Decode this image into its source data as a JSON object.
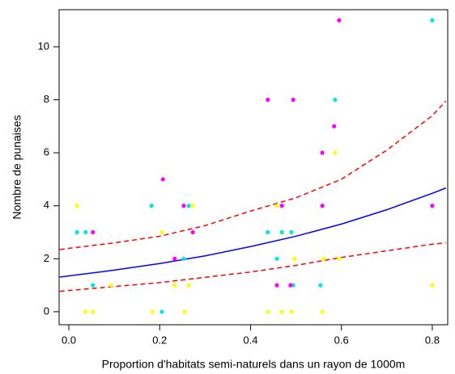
{
  "chart_data": {
    "type": "scatter",
    "x_label": "Proportion d'habitats semi-naturels dans un rayon de 1000m",
    "y_label": "Nombre de punaises",
    "xlim": [
      -0.0214,
      0.834
    ],
    "ylim": [
      -0.49,
      11.4
    ],
    "xticks": [
      {
        "value": 0,
        "label": "0.0"
      },
      0.2,
      0.4,
      0.6,
      0.8
    ],
    "yticks": [
      0,
      2,
      4,
      6,
      8,
      10
    ],
    "series": [
      {
        "style": "points",
        "color": "#00e5e5",
        "x": [
          0.018,
          0.037,
          0.053,
          0.182,
          0.205,
          0.253,
          0.264,
          0.438,
          0.458,
          0.469,
          0.49,
          0.494,
          0.586,
          0.558,
          0.554,
          0.8
        ],
        "values": [
          3,
          3,
          1,
          4,
          0,
          2,
          4,
          3,
          2,
          3,
          3,
          1,
          8,
          4,
          1,
          11
        ]
      },
      {
        "style": "points",
        "color": "#ff00ff",
        "x": [
          0.053,
          0.207,
          0.233,
          0.253,
          0.273,
          0.438,
          0.458,
          0.469,
          0.494,
          0.488,
          0.558,
          0.558,
          0.584,
          0.595,
          0.8
        ],
        "values": [
          3,
          5,
          2,
          4,
          3,
          8,
          1,
          4,
          8,
          1,
          6,
          4,
          7,
          11,
          4
        ]
      },
      {
        "style": "points",
        "color": "#ffff00",
        "x": [
          0.018,
          0.037,
          0.053,
          0.093,
          0.184,
          0.205,
          0.233,
          0.255,
          0.264,
          0.273,
          0.438,
          0.458,
          0.469,
          0.49,
          0.497,
          0.558,
          0.561,
          0.586,
          0.595,
          0.8
        ],
        "values": [
          4,
          0,
          0,
          1,
          0,
          3,
          1,
          0,
          1,
          4,
          0,
          4,
          0,
          0,
          2,
          0,
          2,
          6,
          2,
          1
        ]
      },
      {
        "style": "solid",
        "color": "#0000ff",
        "x": [
          -0.02,
          0.1,
          0.2,
          0.3,
          0.4,
          0.5,
          0.6,
          0.7,
          0.8,
          0.83
        ],
        "values": [
          1.31,
          1.57,
          1.82,
          2.11,
          2.46,
          2.85,
          3.31,
          3.85,
          4.47,
          4.67
        ]
      },
      {
        "style": "dashed",
        "color": "#ff0000",
        "x": [
          -0.02,
          0.1,
          0.2,
          0.3,
          0.4,
          0.5,
          0.6,
          0.7,
          0.8,
          0.83
        ],
        "values": [
          2.35,
          2.6,
          2.85,
          3.25,
          3.8,
          4.3,
          5.0,
          6.1,
          7.4,
          7.95
        ]
      },
      {
        "style": "dashed",
        "color": "#ff0000",
        "x": [
          -0.02,
          0.1,
          0.2,
          0.3,
          0.4,
          0.5,
          0.6,
          0.7,
          0.8,
          0.83
        ],
        "values": [
          0.77,
          0.95,
          1.1,
          1.3,
          1.5,
          1.75,
          2.05,
          2.3,
          2.55,
          2.6
        ]
      }
    ]
  }
}
